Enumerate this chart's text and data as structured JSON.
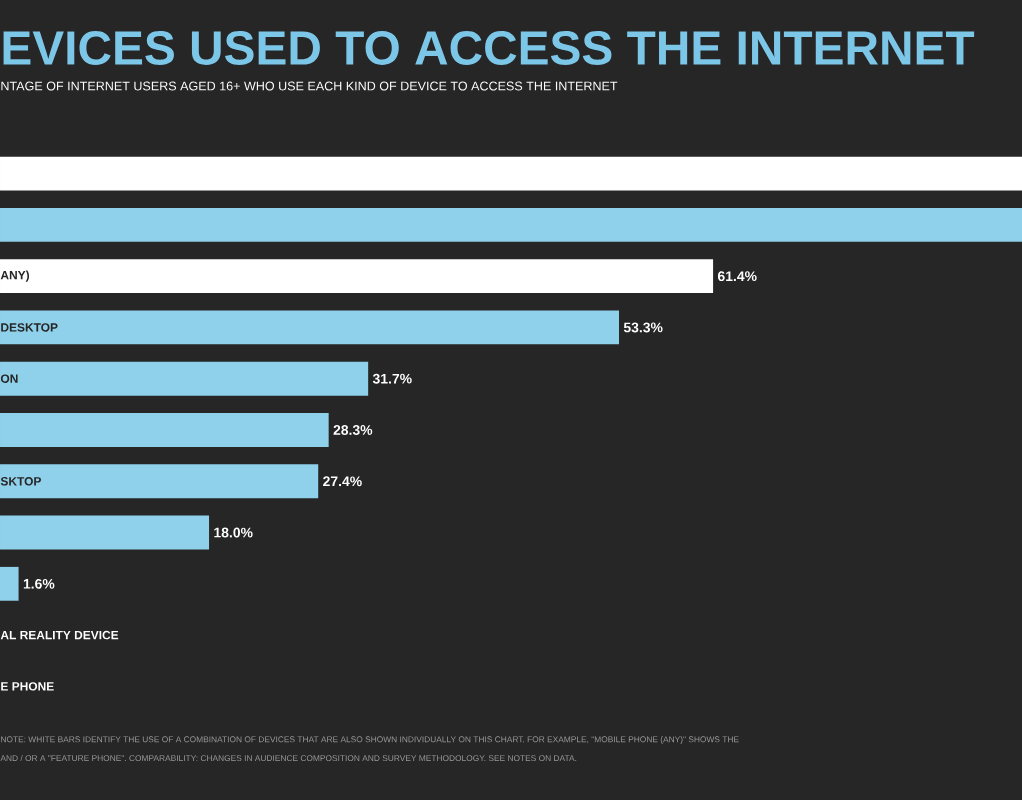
{
  "chart_data": {
    "type": "bar",
    "orientation": "horizontal",
    "title": "EVICES USED TO ACCESS THE INTERNET",
    "subtitle": "NTAGE OF INTERNET USERS AGED 16+ WHO USE EACH KIND OF DEVICE TO ACCESS THE INTERNET",
    "categories": [
      null,
      null,
      "ANY)",
      "DESKTOP",
      "ON",
      null,
      "SKTOP",
      null,
      null,
      "AL REALITY DEVICE",
      "E PHONE"
    ],
    "values": [
      88,
      88,
      61.4,
      53.3,
      31.7,
      28.3,
      27.4,
      18.0,
      1.6,
      null,
      null
    ],
    "colors": [
      "#ffffff",
      "#8fd0ea",
      "#ffffff",
      "#8fd0ea",
      "#8fd0ea",
      "#8fd0ea",
      "#8fd0ea",
      "#8fd0ea",
      "#8fd0ea",
      "#8fd0ea",
      "#8fd0ea"
    ],
    "value_labels": [
      null,
      null,
      "61.4%",
      "53.3%",
      "31.7%",
      "28.3%",
      "27.4%",
      "18.0%",
      "1.6%",
      null,
      null
    ],
    "xlim": [
      0,
      88
    ],
    "annotations": [
      "NOTE: WHITE BARS IDENTIFY THE USE OF A COMBINATION OF DEVICES THAT ARE ALSO SHOWN INDIVIDUALLY ON THIS CHART. FOR EXAMPLE, \"MOBILE PHONE (ANY)\" SHOWS THE",
      "AND / OR A \"FEATURE PHONE\". COMPARABILITY: CHANGES IN AUDIENCE COMPOSITION AND SURVEY METHODOLOGY. SEE NOTES ON DATA."
    ]
  }
}
